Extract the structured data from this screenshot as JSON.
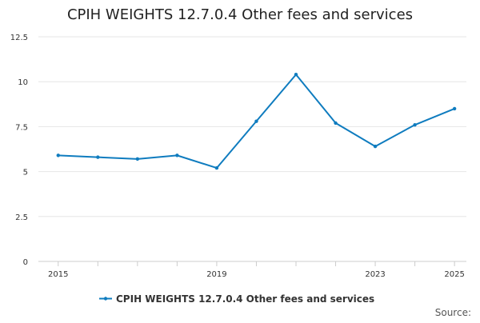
{
  "chart_data": {
    "type": "line",
    "title": "CPIH WEIGHTS 12.7.0.4 Other fees and services",
    "xlabel": "",
    "ylabel": "",
    "x": [
      2015,
      2016,
      2017,
      2018,
      2019,
      2020,
      2021,
      2022,
      2023,
      2024,
      2025
    ],
    "x_tick_labels": [
      "2015",
      "2019",
      "2023",
      "2025"
    ],
    "x_tick_values": [
      2015,
      2019,
      2023,
      2025
    ],
    "x_minor_ticks": [
      2015,
      2016,
      2017,
      2018,
      2019,
      2020,
      2021,
      2022,
      2023,
      2024,
      2025
    ],
    "y_ticks": [
      0,
      2.5,
      5,
      7.5,
      10,
      12.5
    ],
    "y_tick_labels": [
      "0",
      "2.5",
      "5",
      "7.5",
      "10",
      "12.5"
    ],
    "ylim": [
      0,
      12.5
    ],
    "grid": true,
    "legend_position": "bottom-center",
    "series": [
      {
        "name": "CPIH WEIGHTS 12.7.0.4 Other fees and services",
        "color": "#0f7cbf",
        "values": [
          5.9,
          5.8,
          5.7,
          5.9,
          5.2,
          7.8,
          10.4,
          7.7,
          6.4,
          7.6,
          8.5
        ]
      }
    ]
  },
  "footer": {
    "source_label": "Source:"
  },
  "colors": {
    "gridline": "#e6e6e6",
    "axis": "#cccccc",
    "text": "#333333"
  }
}
